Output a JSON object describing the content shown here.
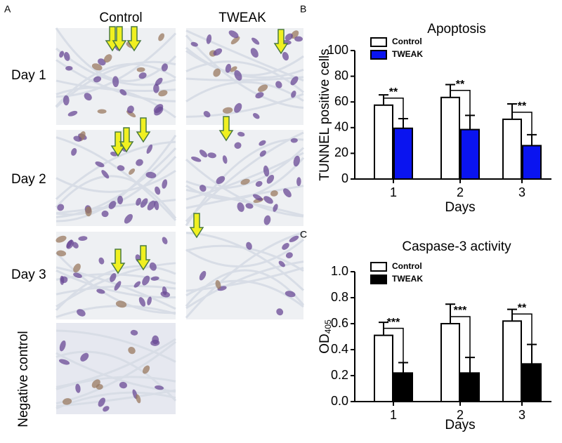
{
  "panel_a": {
    "label": "A",
    "columns": [
      "Control",
      "TWEAK"
    ],
    "rows": [
      "Day 1",
      "Day 2",
      "Day 3",
      "Negative control"
    ]
  },
  "chart_data": [
    {
      "type": "bar",
      "panel_label": "B",
      "title": "Apoptosis",
      "ylabel": "TUNNEL positive cells",
      "xlabel": "Days",
      "categories": [
        "1",
        "2",
        "3"
      ],
      "series": [
        {
          "name": "Control",
          "color": "#ffffff",
          "values": [
            57.5,
            63.5,
            46.5
          ],
          "errors": [
            8,
            10,
            12
          ]
        },
        {
          "name": "TWEAK",
          "color": "#0a14f0",
          "values": [
            39.5,
            38.5,
            26
          ],
          "errors": [
            7.5,
            11,
            8.5
          ]
        }
      ],
      "significance": [
        "**",
        "**",
        "**"
      ],
      "ylim": [
        0,
        100
      ],
      "yticks": [
        0,
        20,
        40,
        60,
        80,
        100
      ]
    },
    {
      "type": "bar",
      "panel_label": "C",
      "title": "Caspase-3 activity",
      "ylabel": "OD",
      "ylabel_subscript": "405",
      "xlabel": "Days",
      "categories": [
        "1",
        "2",
        "3"
      ],
      "series": [
        {
          "name": "Control",
          "color": "#ffffff",
          "values": [
            0.51,
            0.6,
            0.62
          ],
          "errors": [
            0.1,
            0.15,
            0.09
          ]
        },
        {
          "name": "TWEAK",
          "color": "#000000",
          "values": [
            0.22,
            0.22,
            0.29
          ],
          "errors": [
            0.08,
            0.12,
            0.15
          ]
        }
      ],
      "significance": [
        "***",
        "***",
        "**"
      ],
      "ylim": [
        0,
        1
      ],
      "yticks": [
        {
          "value": 0,
          "label": "0.0"
        },
        0.2,
        0.4,
        0.6,
        0.8,
        {
          "value": 1,
          "label": "1.0"
        }
      ]
    }
  ]
}
